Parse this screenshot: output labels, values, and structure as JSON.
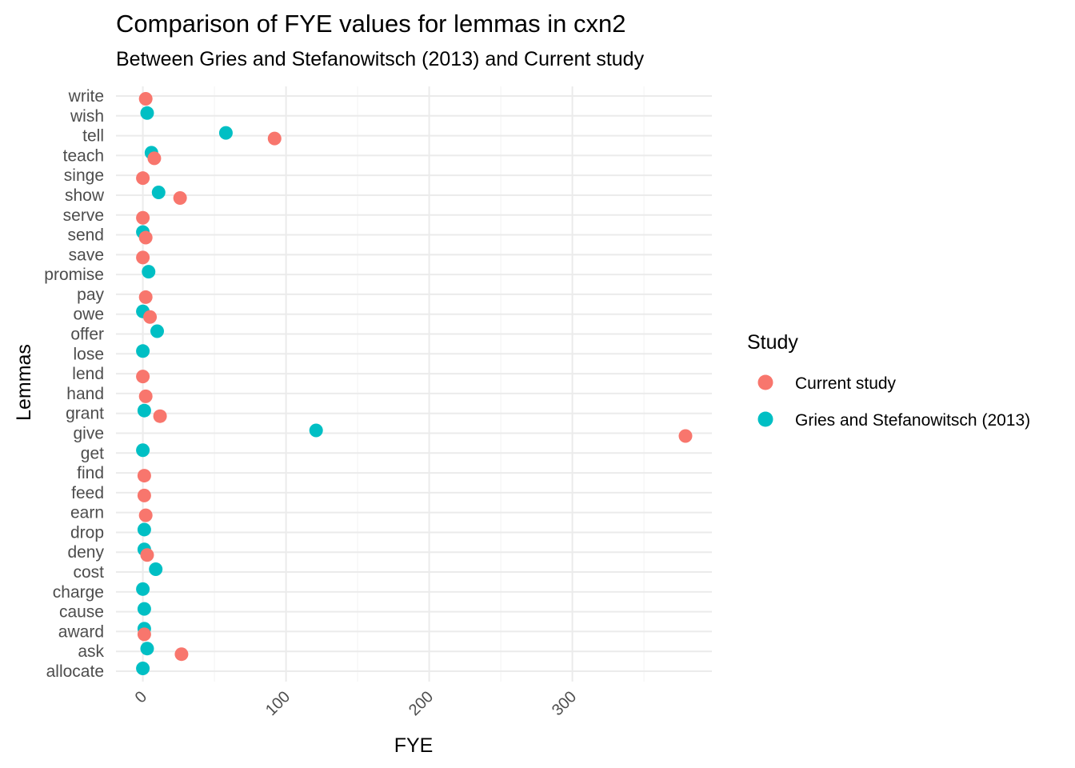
{
  "chart_data": {
    "type": "scatter",
    "title": "Comparison of FYE values for lemmas in cxn2",
    "subtitle": "Between Gries and Stefanowitsch (2013) and Current study",
    "xlabel": "FYE",
    "ylabel": "Lemmas",
    "xlim": [
      -20,
      400
    ],
    "x_ticks": [
      0,
      100,
      200,
      300
    ],
    "grid": true,
    "legend": {
      "title": "Study",
      "position": "right"
    },
    "categories": [
      "write",
      "wish",
      "tell",
      "teach",
      "singe",
      "show",
      "serve",
      "send",
      "save",
      "promise",
      "pay",
      "owe",
      "offer",
      "lose",
      "lend",
      "hand",
      "grant",
      "give",
      "get",
      "find",
      "feed",
      "earn",
      "drop",
      "deny",
      "cost",
      "charge",
      "cause",
      "award",
      "ask",
      "allocate"
    ],
    "series": [
      {
        "name": "Current study",
        "color": "#F8766D",
        "points": [
          {
            "lemma": "write",
            "x": 2
          },
          {
            "lemma": "tell",
            "x": 92
          },
          {
            "lemma": "teach",
            "x": 8
          },
          {
            "lemma": "singe",
            "x": 0
          },
          {
            "lemma": "show",
            "x": 26
          },
          {
            "lemma": "serve",
            "x": 0
          },
          {
            "lemma": "send",
            "x": 2
          },
          {
            "lemma": "save",
            "x": 0
          },
          {
            "lemma": "pay",
            "x": 2
          },
          {
            "lemma": "owe",
            "x": 5
          },
          {
            "lemma": "lend",
            "x": 0
          },
          {
            "lemma": "hand",
            "x": 2
          },
          {
            "lemma": "grant",
            "x": 12
          },
          {
            "lemma": "give",
            "x": 379
          },
          {
            "lemma": "find",
            "x": 1
          },
          {
            "lemma": "feed",
            "x": 1
          },
          {
            "lemma": "earn",
            "x": 2
          },
          {
            "lemma": "deny",
            "x": 3
          },
          {
            "lemma": "award",
            "x": 1
          },
          {
            "lemma": "ask",
            "x": 27
          }
        ]
      },
      {
        "name": "Gries and Stefanowitsch (2013)",
        "color": "#00BFC4",
        "points": [
          {
            "lemma": "wish",
            "x": 3
          },
          {
            "lemma": "tell",
            "x": 58
          },
          {
            "lemma": "teach",
            "x": 6
          },
          {
            "lemma": "show",
            "x": 11
          },
          {
            "lemma": "send",
            "x": 0
          },
          {
            "lemma": "promise",
            "x": 4
          },
          {
            "lemma": "owe",
            "x": 0
          },
          {
            "lemma": "offer",
            "x": 10
          },
          {
            "lemma": "lose",
            "x": 0
          },
          {
            "lemma": "grant",
            "x": 1
          },
          {
            "lemma": "give",
            "x": 121
          },
          {
            "lemma": "get",
            "x": 0
          },
          {
            "lemma": "drop",
            "x": 1
          },
          {
            "lemma": "deny",
            "x": 1
          },
          {
            "lemma": "cost",
            "x": 9
          },
          {
            "lemma": "charge",
            "x": 0
          },
          {
            "lemma": "cause",
            "x": 1
          },
          {
            "lemma": "award",
            "x": 1
          },
          {
            "lemma": "ask",
            "x": 3
          },
          {
            "lemma": "allocate",
            "x": 0
          }
        ]
      }
    ]
  }
}
